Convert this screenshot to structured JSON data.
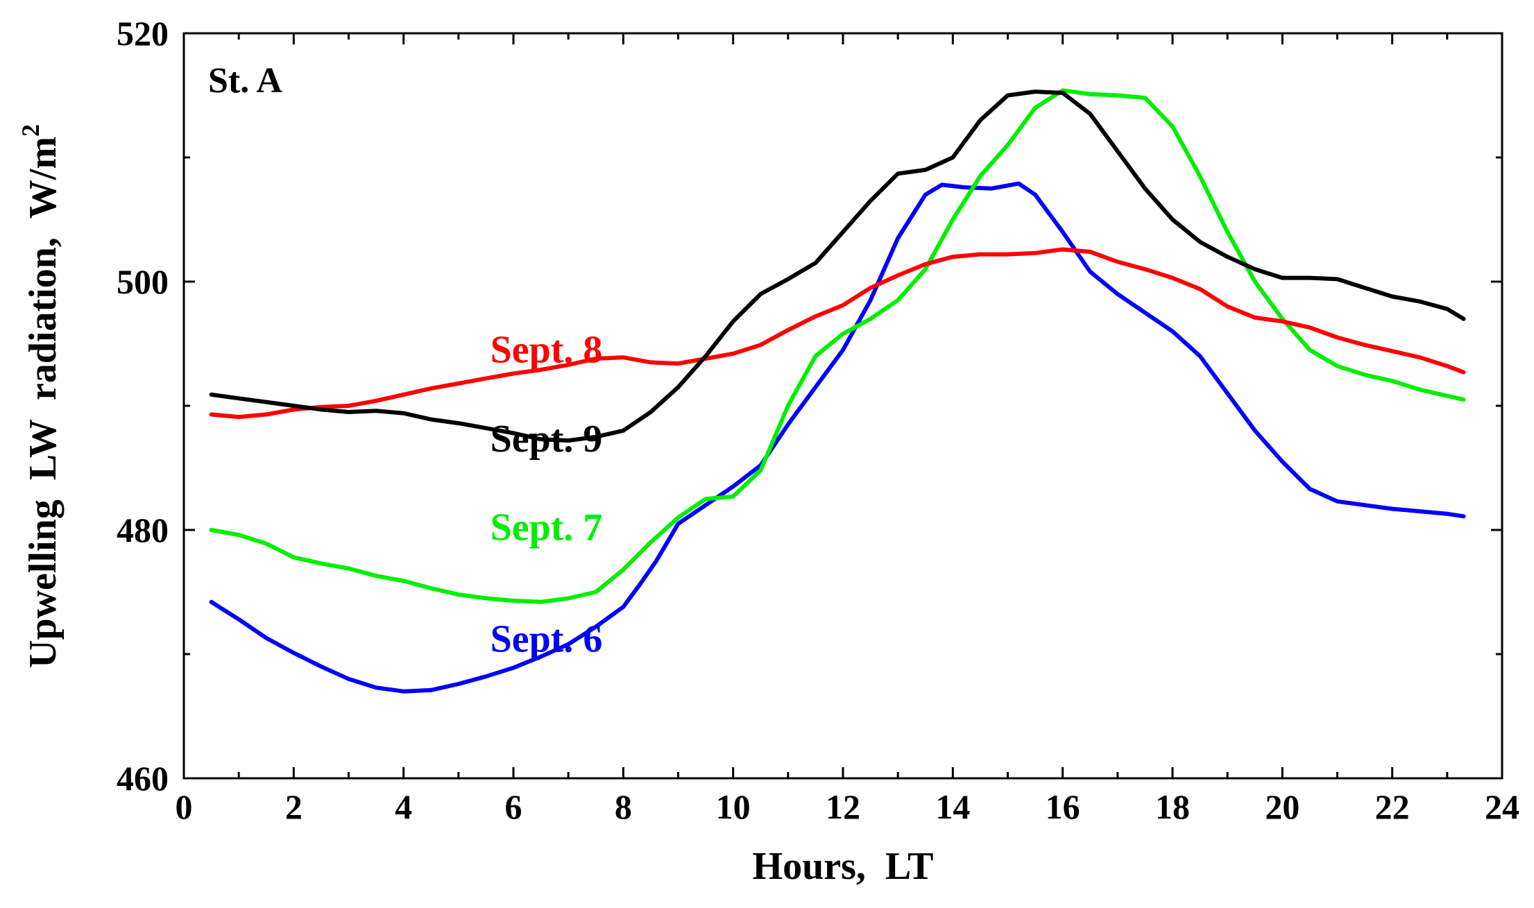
{
  "chart_data": {
    "type": "line",
    "title": "",
    "panel_label": "St. A",
    "xlabel": "Hours,  LT",
    "ylabel": "Upwelling  LW  radiation,  W/m",
    "ylabel_superscript": "2",
    "xlim": [
      0,
      24
    ],
    "ylim": [
      460,
      520
    ],
    "xticks": [
      0,
      2,
      4,
      6,
      8,
      10,
      12,
      14,
      16,
      18,
      20,
      22,
      24
    ],
    "yticks": [
      460,
      480,
      500,
      520
    ],
    "series": [
      {
        "name": "Sept. 6",
        "color": "#0000ff",
        "label_anchor": [
          6.6,
          470.2
        ],
        "x": [
          0.5,
          1,
          1.5,
          2,
          2.5,
          3,
          3.5,
          4,
          4.5,
          5,
          5.5,
          6,
          6.5,
          7,
          7.5,
          8,
          8.3,
          8.6,
          9,
          9.5,
          10,
          10.5,
          11,
          11.5,
          12,
          12.5,
          13,
          13.5,
          13.8,
          14.2,
          14.7,
          15.2,
          15.5,
          16,
          16.5,
          17,
          17.5,
          18,
          18.5,
          19,
          19.5,
          20,
          20.5,
          21,
          21.5,
          22,
          22.5,
          23,
          23.3
        ],
        "values": [
          474.2,
          472.8,
          471.3,
          470.1,
          469.0,
          468.0,
          467.3,
          467.0,
          467.1,
          467.6,
          468.2,
          468.9,
          469.8,
          470.8,
          472.2,
          473.8,
          475.6,
          477.5,
          480.5,
          482.0,
          483.5,
          485.2,
          488.5,
          491.5,
          494.5,
          498.5,
          503.5,
          507.0,
          507.8,
          507.6,
          507.5,
          507.9,
          507.0,
          504.0,
          500.8,
          499.0,
          497.5,
          496.0,
          494.0,
          491.0,
          488.0,
          485.5,
          483.3,
          482.3,
          482.0,
          481.7,
          481.5,
          481.3,
          481.1
        ]
      },
      {
        "name": "Sept. 7",
        "color": "#00ee00",
        "label_anchor": [
          6.6,
          479.2
        ],
        "x": [
          0.5,
          1,
          1.5,
          2,
          2.5,
          3,
          3.5,
          4,
          4.5,
          5,
          5.5,
          6,
          6.5,
          7,
          7.5,
          8,
          8.5,
          9,
          9.5,
          10,
          10.5,
          11,
          11.5,
          12,
          12.5,
          13,
          13.5,
          14,
          14.5,
          15,
          15.5,
          16,
          16.5,
          17,
          17.5,
          18,
          18.5,
          19,
          19.5,
          20,
          20.5,
          21,
          21.5,
          22,
          22.5,
          23,
          23.3
        ],
        "values": [
          480.0,
          479.6,
          478.9,
          477.8,
          477.3,
          476.9,
          476.3,
          475.9,
          475.3,
          474.8,
          474.5,
          474.3,
          474.2,
          474.5,
          475.0,
          476.8,
          479.0,
          481.0,
          482.5,
          482.7,
          484.8,
          490.0,
          494.0,
          495.8,
          497.0,
          498.5,
          501.0,
          505.0,
          508.5,
          511.0,
          514.0,
          515.4,
          515.1,
          515.0,
          514.8,
          512.5,
          508.5,
          504.0,
          500.0,
          497.0,
          494.5,
          493.2,
          492.5,
          492.0,
          491.3,
          490.8,
          490.5
        ]
      },
      {
        "name": "Sept. 8",
        "color": "#ff0000",
        "label_anchor": [
          6.6,
          493.5
        ],
        "x": [
          0.5,
          1,
          1.5,
          2,
          2.5,
          3,
          3.5,
          4,
          4.5,
          5,
          5.5,
          6,
          6.5,
          7,
          7.5,
          8,
          8.5,
          9,
          9.5,
          10,
          10.5,
          11,
          11.5,
          12,
          12.5,
          13,
          13.5,
          14,
          14.5,
          15,
          15.5,
          16,
          16.5,
          17,
          17.5,
          18,
          18.5,
          19,
          19.5,
          20,
          20.5,
          21,
          21.5,
          22,
          22.5,
          23,
          23.3
        ],
        "values": [
          489.3,
          489.1,
          489.3,
          489.7,
          489.9,
          490.0,
          490.4,
          490.9,
          491.4,
          491.8,
          492.2,
          492.6,
          492.9,
          493.3,
          493.8,
          493.9,
          493.5,
          493.4,
          493.8,
          494.2,
          494.9,
          496.1,
          497.2,
          498.1,
          499.5,
          500.5,
          501.4,
          502.0,
          502.2,
          502.2,
          502.3,
          502.6,
          502.4,
          501.6,
          501.0,
          500.3,
          499.4,
          498.0,
          497.1,
          496.8,
          496.3,
          495.5,
          494.9,
          494.4,
          493.9,
          493.2,
          492.7
        ]
      },
      {
        "name": "Sept. 9",
        "color": "#000000",
        "label_anchor": [
          6.6,
          486.3
        ],
        "x": [
          0.5,
          1,
          1.5,
          2,
          2.5,
          3,
          3.5,
          4,
          4.5,
          5,
          5.5,
          6,
          6.5,
          7,
          7.5,
          8,
          8.5,
          9,
          9.5,
          10,
          10.5,
          11,
          11.5,
          12,
          12.5,
          13,
          13.5,
          14,
          14.5,
          15,
          15.5,
          16,
          16.5,
          17,
          17.5,
          18,
          18.5,
          19,
          19.5,
          20,
          20.5,
          21,
          21.5,
          22,
          22.5,
          23,
          23.3
        ],
        "values": [
          490.9,
          490.6,
          490.3,
          490.0,
          489.7,
          489.5,
          489.6,
          489.4,
          488.9,
          488.6,
          488.2,
          487.8,
          487.3,
          487.2,
          487.5,
          488.0,
          489.5,
          491.5,
          494.0,
          496.8,
          499.0,
          500.2,
          501.5,
          504.0,
          506.5,
          508.7,
          509.0,
          510.0,
          513.0,
          515.0,
          515.3,
          515.2,
          513.5,
          510.5,
          507.5,
          505.0,
          503.2,
          502.0,
          501.0,
          500.3,
          500.3,
          500.2,
          499.5,
          498.8,
          498.4,
          497.8,
          497.0
        ]
      }
    ]
  }
}
